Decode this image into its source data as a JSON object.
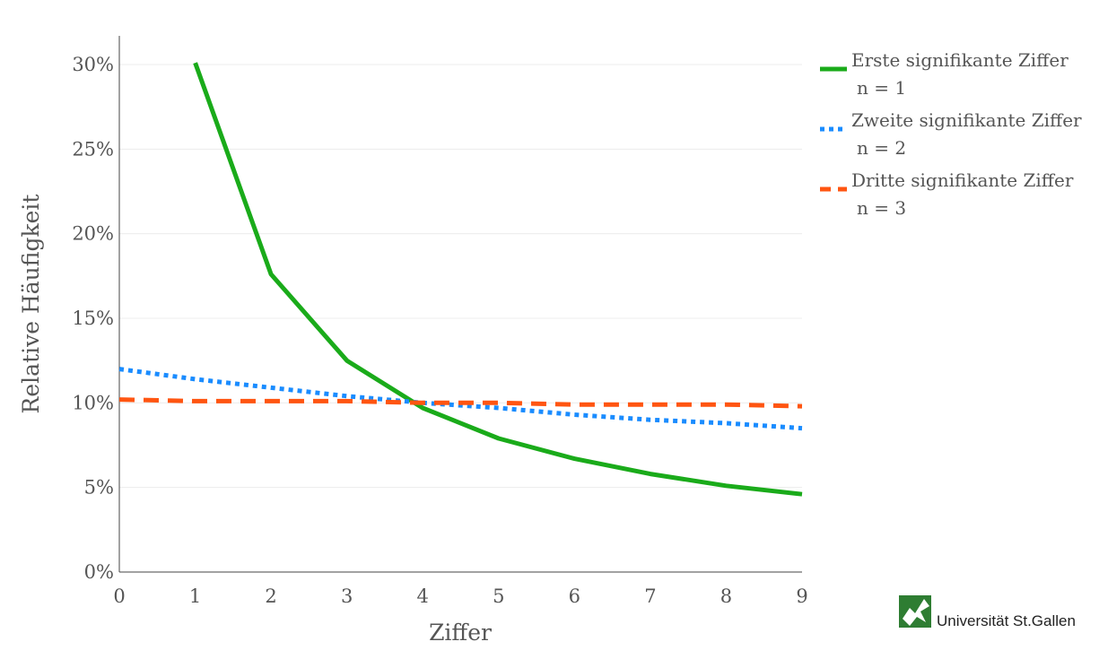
{
  "chart_data": {
    "type": "line",
    "title": "",
    "xlabel": "Ziffer",
    "ylabel": "Relative Häufigkeit",
    "xlim": [
      0,
      9
    ],
    "ylim": [
      0,
      0.3
    ],
    "x_ticks": [
      "0",
      "1",
      "2",
      "3",
      "4",
      "5",
      "6",
      "7",
      "8",
      "9"
    ],
    "y_ticks": [
      "0%",
      "5%",
      "10%",
      "15%",
      "20%",
      "25%",
      "30%"
    ],
    "grid": "horizontal",
    "legend_position": "top-right",
    "series": [
      {
        "name": "Erste signifikante Ziffer",
        "name_sub": "n = 1",
        "color": "#1aab1a",
        "dash": "solid",
        "x": [
          1,
          2,
          3,
          4,
          5,
          6,
          7,
          8,
          9
        ],
        "y": [
          0.301,
          0.176,
          0.125,
          0.097,
          0.079,
          0.067,
          0.058,
          0.051,
          0.046
        ]
      },
      {
        "name": "Zweite signifikante Ziffer",
        "name_sub": "n = 2",
        "color": "#1a8cff",
        "dash": "dot",
        "x": [
          0,
          1,
          2,
          3,
          4,
          5,
          6,
          7,
          8,
          9
        ],
        "y": [
          0.12,
          0.114,
          0.109,
          0.104,
          0.1,
          0.097,
          0.093,
          0.09,
          0.088,
          0.085
        ]
      },
      {
        "name": "Dritte signifikante Ziffer",
        "name_sub": "n = 3",
        "color": "#ff5511",
        "dash": "dash",
        "x": [
          0,
          1,
          2,
          3,
          4,
          5,
          6,
          7,
          8,
          9
        ],
        "y": [
          0.102,
          0.101,
          0.101,
          0.101,
          0.1,
          0.1,
          0.099,
          0.099,
          0.099,
          0.098
        ]
      }
    ]
  },
  "logo": {
    "text": "Universität St.Gallen",
    "color": "#2e7d32",
    "icon": "university-logo-icon"
  }
}
